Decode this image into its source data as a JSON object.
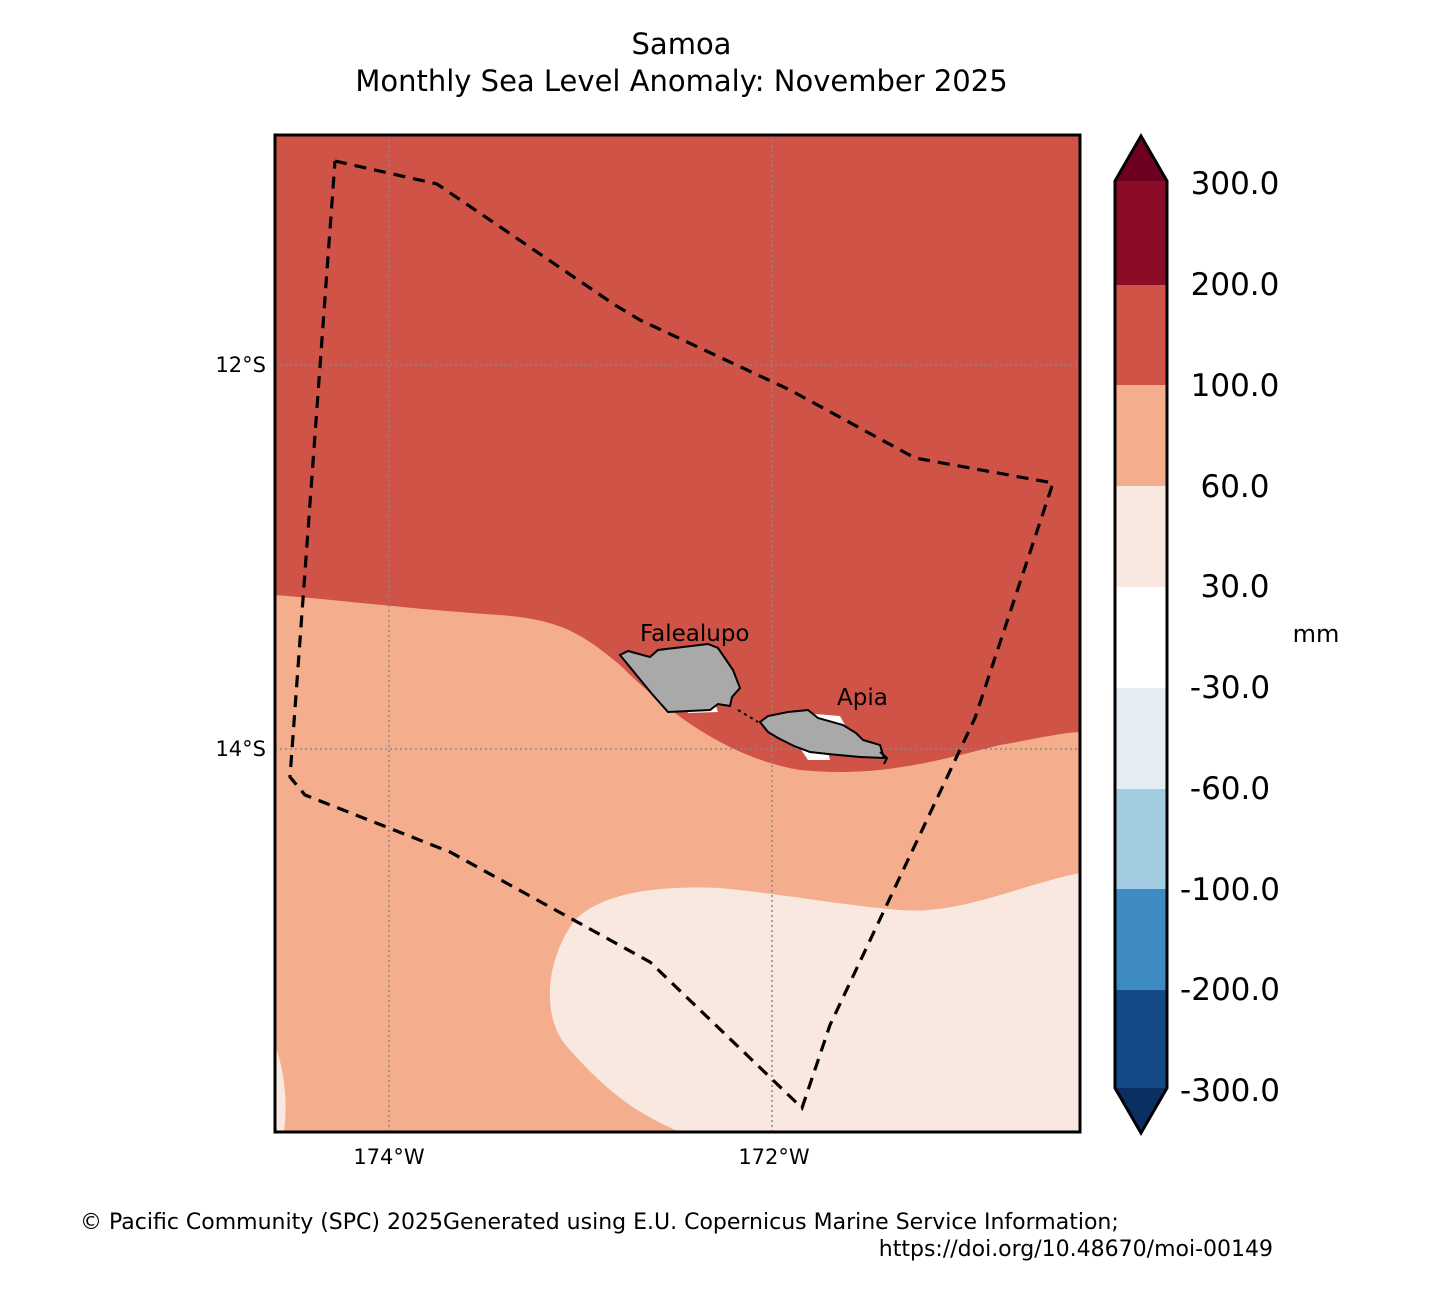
{
  "header": {
    "title": "Samoa",
    "subtitle": "Monthly Sea Level Anomaly: November 2025"
  },
  "map": {
    "lat_labels": [
      "12°S",
      "14°S"
    ],
    "lon_labels": [
      "174°W",
      "172°W"
    ],
    "places": [
      {
        "name": "Falealupo"
      },
      {
        "name": "Apia"
      }
    ],
    "boundary": "dashed EEZ line",
    "land_color": "#a9a9a9"
  },
  "colorbar": {
    "unit": "mm",
    "ticks": [
      "300.0",
      "200.0",
      "100.0",
      "60.0",
      "30.0",
      "-30.0",
      "-60.0",
      "-100.0",
      "-200.0",
      "-300.0"
    ],
    "colors": {
      "above_300": "#6d0021",
      "200_300": "#8a0c27",
      "100_200": "#cf5347",
      "60_100": "#f4ae8d",
      "30_60": "#f9e8df",
      "neg30_30": "#ffffff",
      "neg60_neg30": "#e4ecf4",
      "neg100_neg60": "#a2cce2",
      "neg200_neg100": "#3d8bc2",
      "neg300_neg200": "#144a87",
      "below_neg300": "#0a2f62"
    }
  },
  "footer": {
    "credit_line1": "© Pacific Community (SPC) 2025Generated using E.U. Copernicus Marine Service Information;",
    "credit_line2": "https://doi.org/10.48670/moi-00149"
  }
}
